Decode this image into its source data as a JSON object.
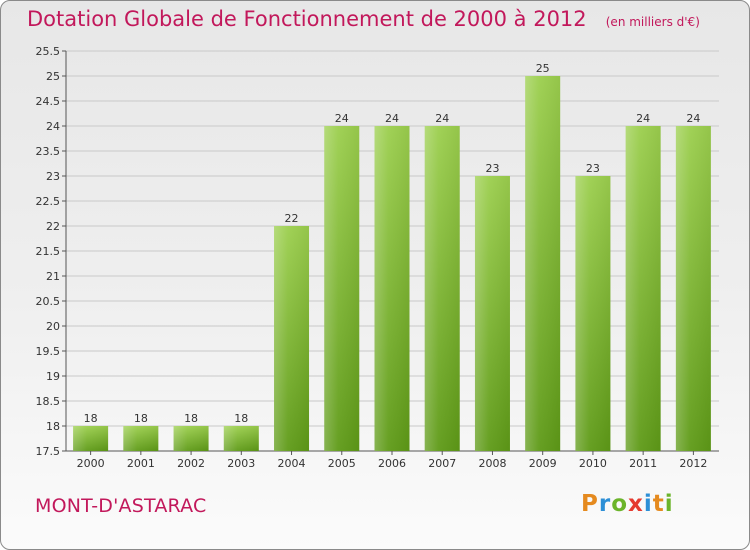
{
  "chart_data": {
    "type": "bar",
    "title": "Dotation Globale de Fonctionnement de 2000 à 2012",
    "unit_label": "(en milliers d'€)",
    "categories": [
      "2000",
      "2001",
      "2002",
      "2003",
      "2004",
      "2005",
      "2006",
      "2007",
      "2008",
      "2009",
      "2010",
      "2011",
      "2012"
    ],
    "values": [
      18,
      18,
      18,
      18,
      22,
      24,
      24,
      24,
      23,
      25,
      23,
      24,
      24
    ],
    "ylim": [
      17.5,
      25.5
    ],
    "yticks": [
      "17.5",
      "18",
      "18.5",
      "19",
      "19.5",
      "20",
      "20.5",
      "21",
      "21.5",
      "22",
      "22.5",
      "23",
      "23.5",
      "24",
      "24.5",
      "25",
      "25.5"
    ],
    "grid": true,
    "bar_color_top": "#9ccf4e",
    "bar_color_bottom": "#5e9a17"
  },
  "footer": {
    "city": "MONT-D'ASTARAC",
    "logo_text": "Proxiti",
    "logo_colors": [
      "#e58a1f",
      "#2d8fd6",
      "#6bb42a",
      "#e53a2f",
      "#2d8fd6",
      "#e58a1f",
      "#6bb42a"
    ]
  },
  "colors": {
    "accent": "#c2185b"
  }
}
